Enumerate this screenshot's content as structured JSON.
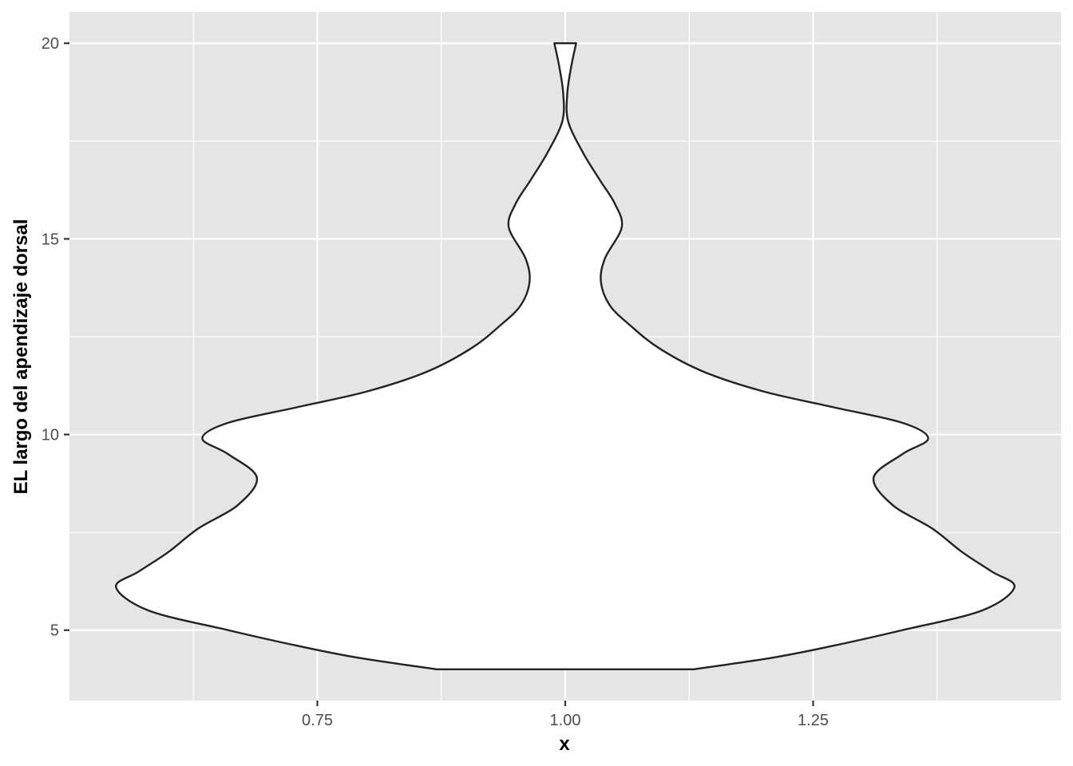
{
  "chart_data": {
    "type": "violin",
    "title": "",
    "xlabel": "x",
    "ylabel": "EL largo del apendizaje dorsal",
    "xlim": [
      0.5,
      1.5
    ],
    "ylim": [
      3.2,
      20.8
    ],
    "x_ticks": [
      0.75,
      1.0,
      1.25
    ],
    "x_tick_labels": [
      "0.75",
      "1.00",
      "1.25"
    ],
    "x_minor_ticks": [
      0.625,
      0.875,
      1.125,
      1.375
    ],
    "y_ticks": [
      5,
      10,
      15,
      20
    ],
    "y_tick_labels": [
      "5",
      "10",
      "15",
      "20"
    ],
    "y_minor_ticks": [
      7.5,
      12.5,
      17.5
    ],
    "grid": true,
    "legend": "none",
    "colors": {
      "panel": "#e5e5e5",
      "grid": "#ffffff",
      "fill": "#ffffff",
      "outline": "#222222"
    },
    "violin": {
      "center_x": 1.0,
      "y_min": 4.0,
      "y_max": 20.0,
      "density_profile": [
        {
          "y": 4.0,
          "half_width": 0.13
        },
        {
          "y": 4.3,
          "half_width": 0.21
        },
        {
          "y": 4.6,
          "half_width": 0.27
        },
        {
          "y": 5.0,
          "half_width": 0.34
        },
        {
          "y": 5.5,
          "half_width": 0.42
        },
        {
          "y": 6.1,
          "half_width": 0.453
        },
        {
          "y": 6.5,
          "half_width": 0.43
        },
        {
          "y": 7.0,
          "half_width": 0.4
        },
        {
          "y": 7.6,
          "half_width": 0.37
        },
        {
          "y": 8.2,
          "half_width": 0.33
        },
        {
          "y": 8.9,
          "half_width": 0.311
        },
        {
          "y": 9.5,
          "half_width": 0.34
        },
        {
          "y": 9.9,
          "half_width": 0.366
        },
        {
          "y": 10.3,
          "half_width": 0.34
        },
        {
          "y": 10.7,
          "half_width": 0.27
        },
        {
          "y": 11.1,
          "half_width": 0.2
        },
        {
          "y": 11.6,
          "half_width": 0.14
        },
        {
          "y": 12.2,
          "half_width": 0.095
        },
        {
          "y": 12.8,
          "half_width": 0.065
        },
        {
          "y": 13.3,
          "half_width": 0.045
        },
        {
          "y": 13.9,
          "half_width": 0.036
        },
        {
          "y": 14.5,
          "half_width": 0.04
        },
        {
          "y": 15.3,
          "half_width": 0.057
        },
        {
          "y": 15.9,
          "half_width": 0.05
        },
        {
          "y": 16.5,
          "half_width": 0.035
        },
        {
          "y": 17.2,
          "half_width": 0.018
        },
        {
          "y": 18.0,
          "half_width": 0.003
        },
        {
          "y": 18.7,
          "half_width": 0.002
        },
        {
          "y": 19.4,
          "half_width": 0.006
        },
        {
          "y": 20.0,
          "half_width": 0.011
        }
      ]
    }
  }
}
